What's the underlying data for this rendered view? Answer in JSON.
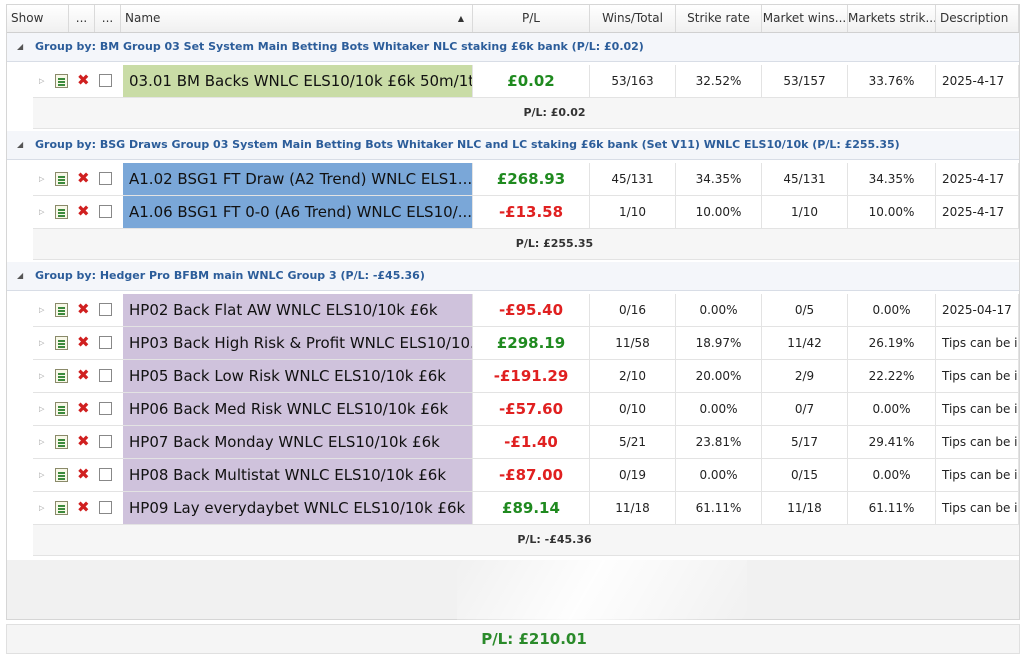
{
  "columns": {
    "show": "Show",
    "dots1": "...",
    "dots2": "...",
    "name": "Name",
    "pl": "P/L",
    "wins_total": "Wins/Total",
    "strike_rate": "Strike rate",
    "market_wins": "Market wins...",
    "markets_strike": "Markets strik...",
    "description": "Description"
  },
  "colors": {
    "positive": "#1f8a1f",
    "negative": "#e02020",
    "group1_name_bg": "#c9dca6",
    "group2_name_bg": "#7aa7d8",
    "group3_name_bg": "#cfc2dc"
  },
  "groups": [
    {
      "label": "Group by: BM Group 03 Set System Main Betting Bots Whitaker NLC staking £6k bank  (P/L: £0.02)",
      "subtotal": "P/L: £0.02",
      "rows": [
        {
          "name": "03.01 BM Backs WNLC ELS10/10k £6k 50m/1t...",
          "pl": "£0.02",
          "sign": "pos",
          "wins": "53/163",
          "strike": "32.52%",
          "mwins": "53/157",
          "mstrike": "33.76%",
          "desc": "2025-4-17"
        }
      ]
    },
    {
      "label": "Group by: BSG Draws Group 03 System Main Betting Bots Whitaker NLC and LC staking £6k bank (Set V11) WNLC ELS10/10k (P/L: £255.35)",
      "subtotal": "P/L: £255.35",
      "rows": [
        {
          "name": "A1.02 BSG1 FT Draw (A2 Trend) WNLC ELS1...",
          "pl": "£268.93",
          "sign": "pos",
          "wins": "45/131",
          "strike": "34.35%",
          "mwins": "45/131",
          "mstrike": "34.35%",
          "desc": "2025-4-17"
        },
        {
          "name": "A1.06 BSG1 FT 0-0 (A6 Trend) WNLC ELS10/...",
          "pl": "-£13.58",
          "sign": "neg",
          "wins": "1/10",
          "strike": "10.00%",
          "mwins": "1/10",
          "mstrike": "10.00%",
          "desc": "2025-4-17"
        }
      ]
    },
    {
      "label": "Group by: Hedger Pro BFBM main WNLC Group 3 (P/L: -£45.36)",
      "subtotal": "P/L: -£45.36",
      "rows": [
        {
          "name": "HP02 Back Flat AW WNLC ELS10/10k £6k",
          "pl": "-£95.40",
          "sign": "neg",
          "wins": "0/16",
          "strike": "0.00%",
          "mwins": "0/5",
          "mstrike": "0.00%",
          "desc": "2025-04-17"
        },
        {
          "name": "HP03 Back High Risk & Profit WNLC ELS10/10...",
          "pl": "£298.19",
          "sign": "pos",
          "wins": "11/58",
          "strike": "18.97%",
          "mwins": "11/42",
          "mstrike": "26.19%",
          "desc": "Tips can be i..."
        },
        {
          "name": "HP05 Back Low Risk WNLC ELS10/10k £6k",
          "pl": "-£191.29",
          "sign": "neg",
          "wins": "2/10",
          "strike": "20.00%",
          "mwins": "2/9",
          "mstrike": "22.22%",
          "desc": "Tips can be i..."
        },
        {
          "name": "HP06 Back Med Risk WNLC ELS10/10k £6k",
          "pl": "-£57.60",
          "sign": "neg",
          "wins": "0/10",
          "strike": "0.00%",
          "mwins": "0/7",
          "mstrike": "0.00%",
          "desc": "Tips can be i..."
        },
        {
          "name": "HP07 Back Monday WNLC ELS10/10k £6k",
          "pl": "-£1.40",
          "sign": "neg",
          "wins": "5/21",
          "strike": "23.81%",
          "mwins": "5/17",
          "mstrike": "29.41%",
          "desc": "Tips can be i..."
        },
        {
          "name": "HP08 Back Multistat WNLC ELS10/10k £6k",
          "pl": "-£87.00",
          "sign": "neg",
          "wins": "0/19",
          "strike": "0.00%",
          "mwins": "0/15",
          "mstrike": "0.00%",
          "desc": "Tips can be i..."
        },
        {
          "name": "HP09 Lay everydaybet WNLC ELS10/10k £6k",
          "pl": "£89.14",
          "sign": "pos",
          "wins": "11/18",
          "strike": "61.11%",
          "mwins": "11/18",
          "mstrike": "61.11%",
          "desc": "Tips can be i..."
        }
      ]
    }
  ],
  "footer": {
    "total": "P/L: £210.01"
  },
  "icons": {
    "expand": "expand-arrow-icon",
    "edit": "document-edit-icon",
    "delete": "delete-x-icon",
    "select": "checkbox-icon",
    "group_toggle": "collapse-triangle-icon",
    "sort": "sort-ascending-icon"
  }
}
